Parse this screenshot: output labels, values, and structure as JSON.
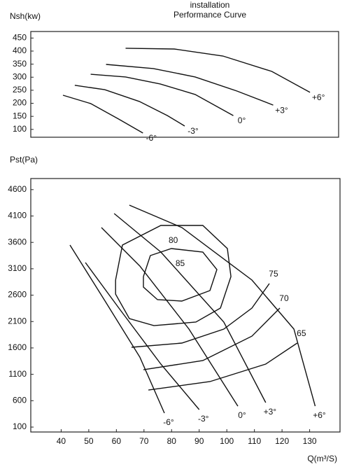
{
  "chart_data": [
    {
      "type": "line",
      "title": "installation",
      "subtitle": "Performance Curve",
      "ylabel": "Nsh(kw)",
      "xlim": [
        29,
        141
      ],
      "ylim": [
        70,
        475
      ],
      "yticks": [
        100,
        150,
        200,
        250,
        300,
        350,
        400,
        450
      ],
      "color": "#111111",
      "series": [
        {
          "name": "-6°",
          "x": [
            40.7,
            50.8,
            60.9,
            69.8
          ],
          "values": [
            231,
            199,
            140,
            86
          ]
        },
        {
          "name": "-3°",
          "x": [
            45,
            55.9,
            68.5,
            78.7,
            85
          ],
          "values": [
            269,
            252,
            207,
            153,
            113
          ]
        },
        {
          "name": "0°",
          "x": [
            50.8,
            63.5,
            76.1,
            88.8,
            102.7
          ],
          "values": [
            311,
            301,
            274,
            234,
            153
          ]
        },
        {
          "name": "+3°",
          "x": [
            56.4,
            73.6,
            88.8,
            104,
            117.2
          ],
          "values": [
            349,
            333,
            301,
            247,
            193
          ]
        },
        {
          "name": "+6°",
          "x": [
            63.5,
            81.2,
            98.9,
            116.7,
            130.6
          ],
          "values": [
            411,
            408,
            381,
            322,
            242
          ]
        }
      ]
    },
    {
      "type": "line",
      "ylabel": "Pst(Pa)",
      "xlabel": "Q(m³/S)",
      "xlim": [
        29,
        141
      ],
      "ylim": [
        7,
        4810
      ],
      "xticks": [
        40,
        50,
        60,
        70,
        80,
        90,
        100,
        110,
        120,
        130
      ],
      "yticks": [
        100,
        600,
        1100,
        1600,
        2100,
        2600,
        3100,
        3600,
        4100,
        4600
      ],
      "color": "#111111",
      "series": [
        {
          "name": "-6°",
          "x": [
            43.2,
            55.9,
            68.5,
            77.4
          ],
          "values": [
            3549,
            2488,
            1426,
            365
          ]
        },
        {
          "name": "-3°",
          "x": [
            48.8,
            60.9,
            76.1,
            90
          ],
          "values": [
            3218,
            2355,
            1294,
            431
          ]
        },
        {
          "name": "0°",
          "x": [
            54.6,
            68.5,
            86.3,
            104
          ],
          "values": [
            3881,
            3151,
            1957,
            497
          ]
        },
        {
          "name": "+3°",
          "x": [
            59.2,
            76.1,
            98.9,
            114.1
          ],
          "values": [
            4146,
            3417,
            2090,
            564
          ]
        },
        {
          "name": "+6°",
          "x": [
            64.7,
            83.7,
            109.1,
            124.3,
            132
          ],
          "values": [
            4306,
            3881,
            2886,
            1957,
            497
          ]
        }
      ],
      "contours": [
        {
          "name": "85",
          "x": [
            69.8,
            72.3,
            79.9,
            91.3,
            96.4,
            93.9,
            83.7,
            74.9,
            69.8,
            69.8
          ],
          "values": [
            2952,
            3350,
            3483,
            3417,
            3085,
            2687,
            2488,
            2514,
            2753,
            2952
          ]
        },
        {
          "name": "80",
          "x": [
            59.7,
            62.2,
            76.1,
            91.3,
            100.2,
            101.5,
            97.7,
            88.8,
            73.6,
            64.7,
            59.7,
            59.7
          ],
          "values": [
            2886,
            3549,
            3921,
            3921,
            3483,
            2952,
            2355,
            2090,
            2023,
            2156,
            2620,
            2886
          ]
        },
        {
          "name": "75",
          "x": [
            65.5,
            83.7,
            98.9,
            109.1,
            115.4
          ],
          "values": [
            1612,
            1692,
            1957,
            2355,
            2820
          ]
        },
        {
          "name": "70",
          "x": [
            69.8,
            91.3,
            109.1,
            119.2
          ],
          "values": [
            1187,
            1360,
            1824,
            2355
          ]
        },
        {
          "name": "65",
          "x": [
            71.6,
            93.9,
            114.1,
            125.5
          ],
          "values": [
            802,
            962,
            1294,
            1692
          ]
        }
      ]
    }
  ]
}
